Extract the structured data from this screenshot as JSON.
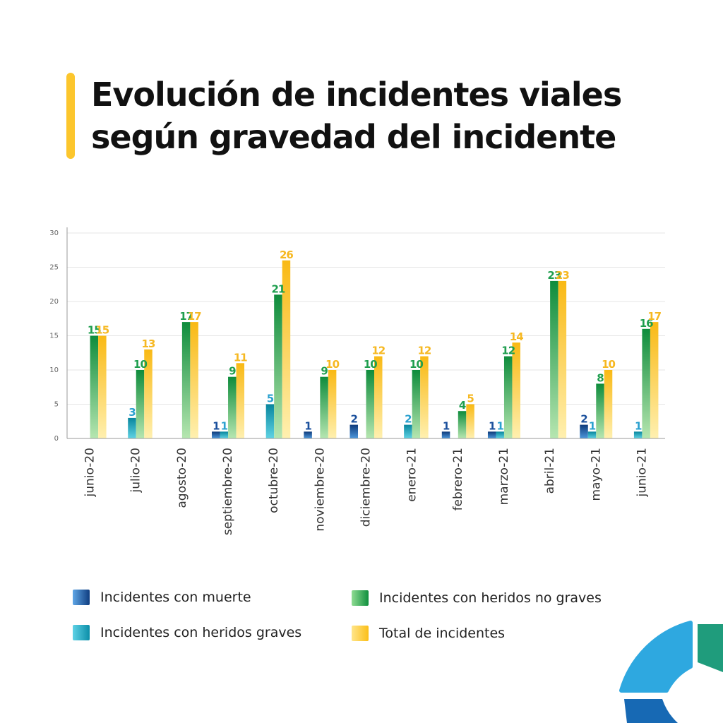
{
  "title_lines": [
    "Evolución de incidentes viales",
    "según gravedad del incidente"
  ],
  "chart_data": {
    "type": "bar",
    "categories": [
      "junio-20",
      "julio-20",
      "agosto-20",
      "septiembre-20",
      "octubre-20",
      "noviembre-20",
      "diciembre-20",
      "enero-21",
      "febrero-21",
      "marzo-21",
      "abril-21",
      "mayo-21",
      "junio-21"
    ],
    "yticks": [
      "0",
      "5",
      "10",
      "15",
      "20",
      "25",
      "30"
    ],
    "ylim": [
      0,
      30
    ],
    "grid": true,
    "legend_position": "bottom",
    "series": [
      {
        "name": "Incidentes con muerte",
        "color": "#1a4f9c",
        "values": [
          null,
          null,
          null,
          1,
          null,
          1,
          2,
          null,
          1,
          1,
          null,
          2,
          null
        ]
      },
      {
        "name": "Incidentes con heridos graves",
        "color": "#1aa3c7",
        "values": [
          null,
          3,
          null,
          1,
          5,
          null,
          null,
          2,
          null,
          1,
          null,
          1,
          1
        ]
      },
      {
        "name": "Incidentes con heridos no graves",
        "color": "#1e9e4e",
        "values": [
          15,
          10,
          17,
          9,
          21,
          9,
          10,
          10,
          4,
          12,
          23,
          8,
          16
        ]
      },
      {
        "name": "Total de incidentes",
        "color": "#fbc02d",
        "values": [
          15,
          13,
          17,
          11,
          26,
          10,
          12,
          12,
          5,
          14,
          23,
          10,
          17
        ]
      }
    ]
  }
}
